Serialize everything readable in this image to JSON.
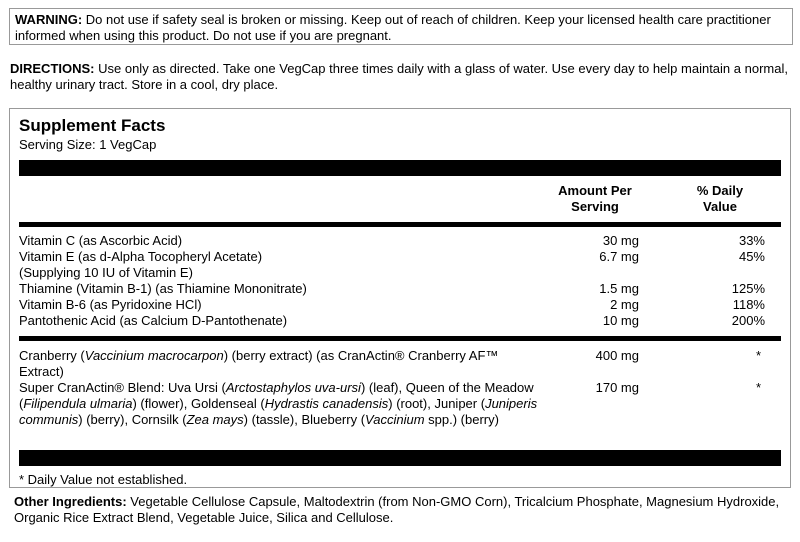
{
  "warning": {
    "label": "WARNING:",
    "text": " Do not use if safety seal is broken or missing. Keep out of reach of children. Keep your licensed health care practitioner informed when using this product. Do not use if you are pregnant."
  },
  "directions": {
    "label": "DIRECTIONS:",
    "text": " Use only as directed. Take one VegCap three times daily with a glass of water. Use every day to help maintain a normal, healthy urinary tract.  Store in a cool, dry place."
  },
  "facts": {
    "title": "Supplement Facts",
    "serving_size": "Serving Size: 1 VegCap",
    "col_amount": [
      "Amount Per",
      "Serving"
    ],
    "col_dv": [
      "% Daily",
      "Value"
    ],
    "vitamins": [
      {
        "name": "Vitamin C (as Ascorbic Acid)",
        "amount": "30 mg",
        "dv": "33%"
      },
      {
        "name": "Vitamin E (as d-Alpha Tocopheryl Acetate)",
        "amount": "6.7 mg",
        "dv": "45%"
      },
      {
        "name": "(Supplying 10 IU of Vitamin E)",
        "amount": "",
        "dv": ""
      },
      {
        "name": "Thiamine (Vitamin B-1) (as Thiamine Mononitrate)",
        "amount": "1.5 mg",
        "dv": "125%"
      },
      {
        "name": "Vitamin B-6 (as Pyridoxine HCl)",
        "amount": "2 mg",
        "dv": "118%"
      },
      {
        "name": "Pantothenic Acid (as Calcium D-Pantothenate)",
        "amount": "10 mg",
        "dv": "200%"
      }
    ],
    "herbals": [
      {
        "segments": [
          {
            "t": "Cranberry ("
          },
          {
            "t": "Vaccinium macrocarpon",
            "i": true
          },
          {
            "t": ")  (berry extract) (as CranActin® Cranberry AF™ Extract)"
          }
        ],
        "amount": "400 mg",
        "dv": "*"
      },
      {
        "segments": [
          {
            "t": "Super CranActin® Blend: Uva Ursi ("
          },
          {
            "t": "Arctostaphylos uva-ursi",
            "i": true
          },
          {
            "t": ") (leaf), Queen of the Meadow ("
          },
          {
            "t": "Filipendula ulmaria",
            "i": true
          },
          {
            "t": ") (flower), Goldenseal ("
          },
          {
            "t": "Hydrastis canadensis",
            "i": true
          },
          {
            "t": ") (root), Juniper ("
          },
          {
            "t": "Juniperis communis",
            "i": true
          },
          {
            "t": ") (berry), Cornsilk ("
          },
          {
            "t": "Zea mays",
            "i": true
          },
          {
            "t": ") (tassle), Blueberry ("
          },
          {
            "t": "Vaccinium",
            "i": true
          },
          {
            "t": " spp.) (berry)"
          }
        ],
        "amount": "170 mg",
        "dv": "*"
      }
    ],
    "footnote": "* Daily Value not established."
  },
  "other": {
    "label": "Other Ingredients:",
    "text": " Vegetable Cellulose Capsule, Maltodextrin (from Non-GMO Corn), Tricalcium Phosphate, Magnesium Hydroxide, Organic Rice Extract Blend, Vegetable Juice, Silica and Cellulose."
  }
}
